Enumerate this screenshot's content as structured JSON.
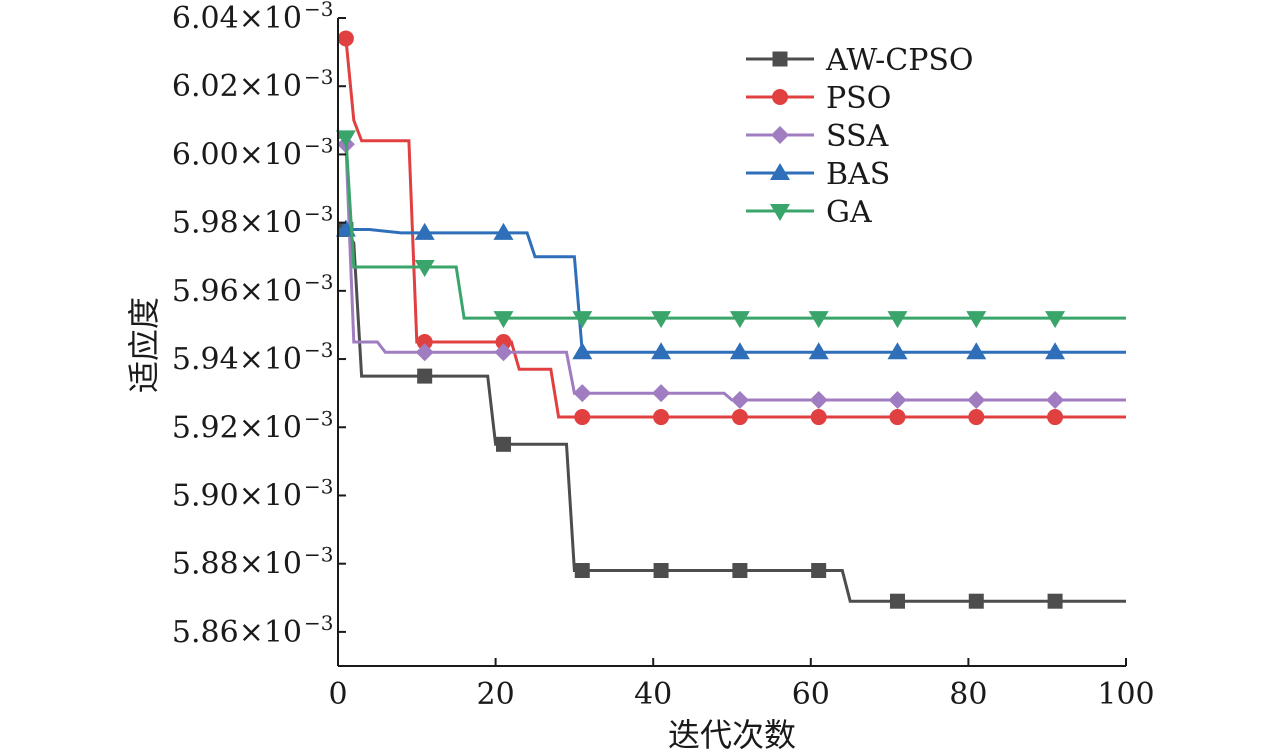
{
  "chart_data": {
    "type": "line",
    "title": "",
    "xlabel": "迭代次数",
    "ylabel": "适应度",
    "xlim": [
      0,
      100
    ],
    "ylim": [
      5.85,
      6.04
    ],
    "x_ticks": [
      0,
      20,
      40,
      60,
      80,
      100
    ],
    "y_ticks": [
      5.86,
      5.88,
      5.9,
      5.92,
      5.94,
      5.96,
      5.98,
      6.0,
      6.02,
      6.04
    ],
    "y_tick_labels": [
      "5.86×10",
      "5.88×10",
      "5.90×10",
      "5.92×10",
      "5.94×10",
      "5.96×10",
      "5.98×10",
      "6.00×10",
      "6.02×10",
      "6.04×10"
    ],
    "y_tick_exponent": "−3",
    "legend_position": "top-right",
    "grid": false,
    "series": [
      {
        "name": "AW-CPSO",
        "color": "#4d4d4d",
        "marker": "square",
        "points": [
          [
            0,
            5.978
          ],
          [
            1,
            5.978
          ],
          [
            2,
            5.974
          ],
          [
            3,
            5.935
          ],
          [
            19,
            5.935
          ],
          [
            20,
            5.915
          ],
          [
            29,
            5.915
          ],
          [
            30,
            5.878
          ],
          [
            64,
            5.878
          ],
          [
            65,
            5.869
          ],
          [
            100,
            5.869
          ]
        ],
        "markers": [
          [
            1,
            5.978
          ],
          [
            11,
            5.935
          ],
          [
            21,
            5.915
          ],
          [
            31,
            5.878
          ],
          [
            41,
            5.878
          ],
          [
            51,
            5.878
          ],
          [
            61,
            5.878
          ],
          [
            71,
            5.869
          ],
          [
            81,
            5.869
          ],
          [
            91,
            5.869
          ]
        ]
      },
      {
        "name": "PSO",
        "color": "#e04040",
        "marker": "circle",
        "points": [
          [
            0,
            6.034
          ],
          [
            1,
            6.034
          ],
          [
            2,
            6.01
          ],
          [
            3,
            6.004
          ],
          [
            9,
            6.004
          ],
          [
            10,
            5.945
          ],
          [
            22,
            5.945
          ],
          [
            23,
            5.937
          ],
          [
            27,
            5.937
          ],
          [
            28,
            5.923
          ],
          [
            100,
            5.923
          ]
        ],
        "markers": [
          [
            1,
            6.034
          ],
          [
            11,
            5.945
          ],
          [
            21,
            5.945
          ],
          [
            31,
            5.923
          ],
          [
            41,
            5.923
          ],
          [
            51,
            5.923
          ],
          [
            61,
            5.923
          ],
          [
            71,
            5.923
          ],
          [
            81,
            5.923
          ],
          [
            91,
            5.923
          ]
        ]
      },
      {
        "name": "SSA",
        "color": "#a07cc0",
        "marker": "diamond",
        "points": [
          [
            0,
            6.003
          ],
          [
            1,
            6.003
          ],
          [
            2,
            5.945
          ],
          [
            5,
            5.945
          ],
          [
            6,
            5.942
          ],
          [
            29,
            5.942
          ],
          [
            30,
            5.93
          ],
          [
            49,
            5.93
          ],
          [
            50,
            5.928
          ],
          [
            100,
            5.928
          ]
        ],
        "markers": [
          [
            1,
            6.003
          ],
          [
            11,
            5.942
          ],
          [
            21,
            5.942
          ],
          [
            31,
            5.93
          ],
          [
            41,
            5.93
          ],
          [
            51,
            5.928
          ],
          [
            61,
            5.928
          ],
          [
            71,
            5.928
          ],
          [
            81,
            5.928
          ],
          [
            91,
            5.928
          ]
        ]
      },
      {
        "name": "BAS",
        "color": "#2f6fba",
        "marker": "triangle-up",
        "points": [
          [
            0,
            5.978
          ],
          [
            4,
            5.978
          ],
          [
            8,
            5.977
          ],
          [
            24,
            5.977
          ],
          [
            25,
            5.97
          ],
          [
            30,
            5.97
          ],
          [
            31,
            5.942
          ],
          [
            100,
            5.942
          ]
        ],
        "markers": [
          [
            1,
            5.978
          ],
          [
            11,
            5.977
          ],
          [
            21,
            5.977
          ],
          [
            31,
            5.942
          ],
          [
            41,
            5.942
          ],
          [
            51,
            5.942
          ],
          [
            61,
            5.942
          ],
          [
            71,
            5.942
          ],
          [
            81,
            5.942
          ],
          [
            91,
            5.942
          ]
        ]
      },
      {
        "name": "GA",
        "color": "#3aa56a",
        "marker": "triangle-down",
        "points": [
          [
            0,
            6.005
          ],
          [
            1,
            6.005
          ],
          [
            2,
            5.967
          ],
          [
            15,
            5.967
          ],
          [
            16,
            5.952
          ],
          [
            100,
            5.952
          ]
        ],
        "markers": [
          [
            1,
            6.005
          ],
          [
            11,
            5.967
          ],
          [
            21,
            5.952
          ],
          [
            31,
            5.952
          ],
          [
            41,
            5.952
          ],
          [
            51,
            5.952
          ],
          [
            61,
            5.952
          ],
          [
            71,
            5.952
          ],
          [
            81,
            5.952
          ],
          [
            91,
            5.952
          ]
        ]
      }
    ]
  }
}
